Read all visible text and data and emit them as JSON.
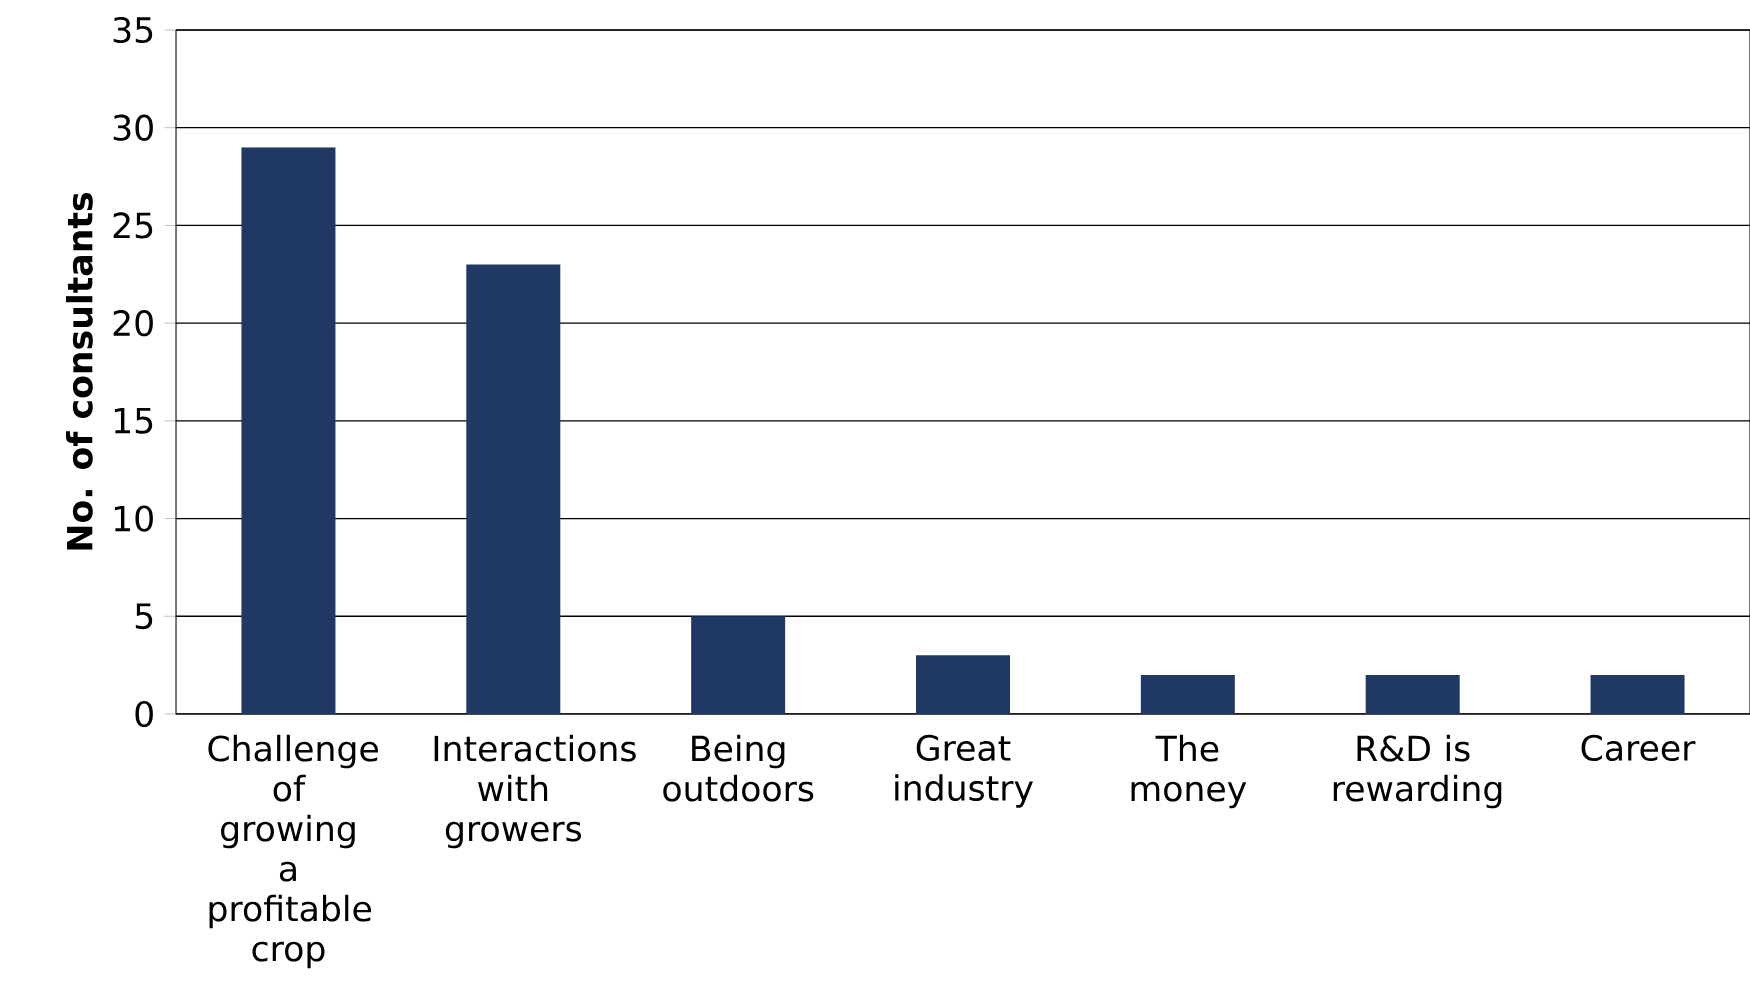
{
  "chart_data": {
    "type": "bar",
    "ylabel": "No. of consultants",
    "categories": [
      "Challenge of growing a profitable crop",
      "Interactions with growers",
      "Being outdoors",
      "Great industry",
      "The money",
      "R&D is rewarding",
      "Career"
    ],
    "values": [
      29,
      23,
      5,
      3,
      2,
      2,
      2
    ],
    "color": "#1f3864",
    "ylim": [
      0,
      35
    ],
    "yticks": [
      0,
      5,
      10,
      15,
      20,
      25,
      30,
      35
    ],
    "grid": "y"
  }
}
